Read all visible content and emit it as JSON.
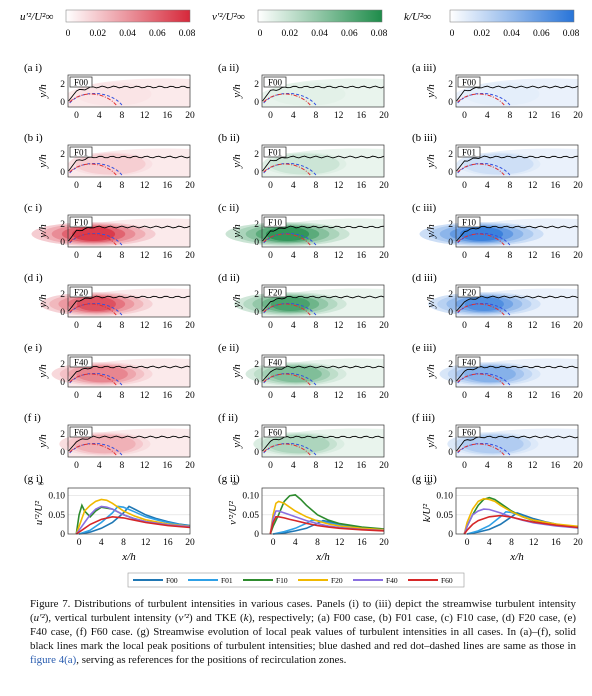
{
  "colorbars": [
    {
      "label": "u'²/U²∞",
      "ticks": [
        "0",
        "0.02",
        "0.04",
        "0.06",
        "0.08"
      ],
      "color": "#d6283a"
    },
    {
      "label": "v'²/U²∞",
      "ticks": [
        "0",
        "0.02",
        "0.04",
        "0.06",
        "0.08"
      ],
      "color": "#1e8c4a"
    },
    {
      "label": "k/U²∞",
      "ticks": [
        "0",
        "0.02",
        "0.04",
        "0.06",
        "0.08"
      ],
      "color": "#2874d8"
    }
  ],
  "rows": [
    {
      "letter": "a",
      "case": "F00",
      "intensity": 0.12,
      "peak_x": 6.5
    },
    {
      "letter": "b",
      "case": "F01",
      "intensity": 0.25,
      "peak_x": 6.0
    },
    {
      "letter": "c",
      "case": "F10",
      "intensity": 0.95,
      "peak_x": 3.0
    },
    {
      "letter": "d",
      "case": "F20",
      "intensity": 0.75,
      "peak_x": 3.5
    },
    {
      "letter": "e",
      "case": "F40",
      "intensity": 0.55,
      "peak_x": 4.5
    },
    {
      "letter": "f",
      "case": "F60",
      "intensity": 0.38,
      "peak_x": 5.0
    }
  ],
  "roman": [
    "i",
    "ii",
    "iii"
  ],
  "contour_axes": {
    "xlabel": "x/h",
    "ylabel": "y/h",
    "xticks": [
      0,
      4,
      8,
      12,
      16,
      20
    ],
    "yticks": [
      0,
      2
    ]
  },
  "line_axes": {
    "xlabel": "x/h",
    "ylabels": [
      "u'²/U²",
      "v'²/U²",
      "k/U²"
    ],
    "xticks": [
      0,
      4,
      8,
      12,
      16,
      20
    ],
    "ytick_labels": [
      "0",
      "0.05",
      "0.10"
    ],
    "exponent": "∞"
  },
  "chart_data": [
    {
      "type": "line",
      "panel": "g i",
      "xlabel": "x/h",
      "ylabel": "u'²/U²∞",
      "xlim": [
        -2,
        20
      ],
      "ylim": [
        0,
        0.12
      ],
      "series": [
        {
          "name": "F00",
          "x": [
            0,
            2,
            4,
            6,
            8,
            9,
            10,
            12,
            14,
            16,
            18,
            20
          ],
          "values": [
            0,
            0.005,
            0.015,
            0.03,
            0.055,
            0.072,
            0.065,
            0.05,
            0.04,
            0.032,
            0.026,
            0.022
          ]
        },
        {
          "name": "F01",
          "x": [
            0,
            2,
            4,
            6,
            7,
            8,
            10,
            12,
            14,
            16,
            18,
            20
          ],
          "values": [
            0,
            0.01,
            0.03,
            0.055,
            0.072,
            0.07,
            0.058,
            0.045,
            0.037,
            0.03,
            0.025,
            0.02
          ]
        },
        {
          "name": "F10",
          "x": [
            -0.5,
            0,
            0.5,
            1,
            2,
            3,
            4,
            6,
            8,
            10,
            12,
            16,
            20
          ],
          "values": [
            0,
            0.05,
            0.075,
            0.06,
            0.045,
            0.06,
            0.07,
            0.065,
            0.05,
            0.04,
            0.032,
            0.024,
            0.018
          ]
        },
        {
          "name": "F20",
          "x": [
            -0.5,
            0,
            1,
            2,
            3,
            4,
            5,
            6,
            8,
            10,
            12,
            16,
            20
          ],
          "values": [
            0,
            0.02,
            0.06,
            0.075,
            0.085,
            0.09,
            0.088,
            0.08,
            0.06,
            0.047,
            0.037,
            0.026,
            0.02
          ]
        },
        {
          "name": "F40",
          "x": [
            -0.5,
            0,
            1,
            2,
            3,
            4,
            5,
            6,
            8,
            10,
            12,
            16,
            20
          ],
          "values": [
            0,
            0.01,
            0.03,
            0.05,
            0.065,
            0.072,
            0.07,
            0.065,
            0.05,
            0.04,
            0.032,
            0.024,
            0.019
          ]
        },
        {
          "name": "F60",
          "x": [
            -0.5,
            0,
            1,
            2,
            4,
            6,
            8,
            10,
            12,
            16,
            20
          ],
          "values": [
            0,
            0.005,
            0.015,
            0.025,
            0.038,
            0.045,
            0.042,
            0.036,
            0.03,
            0.022,
            0.017
          ]
        }
      ]
    },
    {
      "type": "line",
      "panel": "g ii",
      "xlabel": "x/h",
      "ylabel": "v'²/U²∞",
      "xlim": [
        -2,
        20
      ],
      "ylim": [
        0,
        0.12
      ],
      "series": [
        {
          "name": "F00",
          "x": [
            0,
            2,
            4,
            6,
            8,
            9,
            10,
            12,
            14,
            16,
            18,
            20
          ],
          "values": [
            0,
            0.003,
            0.008,
            0.015,
            0.028,
            0.035,
            0.032,
            0.025,
            0.02,
            0.016,
            0.013,
            0.011
          ]
        },
        {
          "name": "F01",
          "x": [
            0,
            2,
            4,
            6,
            7,
            8,
            10,
            12,
            14,
            16,
            18,
            20
          ],
          "values": [
            0,
            0.006,
            0.015,
            0.028,
            0.036,
            0.035,
            0.029,
            0.023,
            0.019,
            0.015,
            0.013,
            0.01
          ]
        },
        {
          "name": "F10",
          "x": [
            -0.5,
            0,
            1,
            2,
            3,
            4,
            5,
            6,
            8,
            10,
            12,
            16,
            20
          ],
          "values": [
            0,
            0.02,
            0.05,
            0.085,
            0.1,
            0.102,
            0.09,
            0.075,
            0.05,
            0.036,
            0.027,
            0.018,
            0.013
          ]
        },
        {
          "name": "F20",
          "x": [
            -0.5,
            0,
            0.5,
            1,
            2,
            3,
            4,
            6,
            8,
            10,
            12,
            16,
            20
          ],
          "values": [
            0,
            0.05,
            0.08,
            0.085,
            0.08,
            0.07,
            0.06,
            0.045,
            0.034,
            0.026,
            0.021,
            0.015,
            0.011
          ]
        },
        {
          "name": "F40",
          "x": [
            -0.5,
            0,
            0.5,
            1,
            2,
            3,
            4,
            6,
            8,
            10,
            12,
            16,
            20
          ],
          "values": [
            0,
            0.04,
            0.06,
            0.06,
            0.055,
            0.05,
            0.045,
            0.035,
            0.027,
            0.021,
            0.017,
            0.012,
            0.009
          ]
        },
        {
          "name": "F60",
          "x": [
            -0.5,
            0,
            0.5,
            1,
            2,
            3,
            4,
            6,
            8,
            10,
            12,
            16,
            20
          ],
          "values": [
            0,
            0.03,
            0.045,
            0.045,
            0.042,
            0.038,
            0.035,
            0.028,
            0.022,
            0.018,
            0.015,
            0.011,
            0.008
          ]
        }
      ]
    },
    {
      "type": "line",
      "panel": "g iii",
      "xlabel": "x/h",
      "ylabel": "k/U²∞",
      "xlim": [
        -2,
        20
      ],
      "ylim": [
        0,
        0.12
      ],
      "series": [
        {
          "name": "F00",
          "x": [
            0,
            2,
            4,
            6,
            8,
            9,
            10,
            12,
            14,
            16,
            18,
            20
          ],
          "values": [
            0,
            0.005,
            0.012,
            0.025,
            0.045,
            0.055,
            0.05,
            0.04,
            0.032,
            0.026,
            0.021,
            0.018
          ]
        },
        {
          "name": "F01",
          "x": [
            0,
            2,
            4,
            6,
            7,
            8,
            10,
            12,
            14,
            16,
            18,
            20
          ],
          "values": [
            0,
            0.008,
            0.022,
            0.045,
            0.058,
            0.056,
            0.046,
            0.036,
            0.03,
            0.024,
            0.02,
            0.016
          ]
        },
        {
          "name": "F10",
          "x": [
            -0.5,
            0,
            1,
            2,
            3,
            4,
            5,
            6,
            8,
            10,
            12,
            16,
            20
          ],
          "values": [
            0,
            0.02,
            0.05,
            0.075,
            0.09,
            0.095,
            0.09,
            0.08,
            0.06,
            0.045,
            0.035,
            0.024,
            0.018
          ]
        },
        {
          "name": "F20",
          "x": [
            -0.5,
            0,
            1,
            2,
            3,
            4,
            5,
            6,
            8,
            10,
            12,
            16,
            20
          ],
          "values": [
            0,
            0.03,
            0.065,
            0.085,
            0.092,
            0.09,
            0.085,
            0.075,
            0.058,
            0.045,
            0.036,
            0.026,
            0.02
          ]
        },
        {
          "name": "F40",
          "x": [
            -0.5,
            0,
            1,
            2,
            3,
            4,
            6,
            8,
            10,
            12,
            16,
            20
          ],
          "values": [
            0,
            0.02,
            0.05,
            0.06,
            0.065,
            0.064,
            0.055,
            0.044,
            0.036,
            0.029,
            0.021,
            0.016
          ]
        },
        {
          "name": "F60",
          "x": [
            -0.5,
            0,
            1,
            2,
            4,
            6,
            8,
            10,
            12,
            16,
            20
          ],
          "values": [
            0,
            0.01,
            0.025,
            0.035,
            0.045,
            0.048,
            0.044,
            0.037,
            0.031,
            0.023,
            0.017
          ]
        }
      ]
    }
  ],
  "legend": [
    {
      "name": "F00",
      "color": "#1f77b4"
    },
    {
      "name": "F01",
      "color": "#2ea0e6"
    },
    {
      "name": "F10",
      "color": "#2e8b2e"
    },
    {
      "name": "F20",
      "color": "#f0b800"
    },
    {
      "name": "F40",
      "color": "#8a6fe0"
    },
    {
      "name": "F60",
      "color": "#d62728"
    }
  ],
  "caption": {
    "s1": "Figure 7. Distributions of turbulent intensities in various cases. Panels (i) to (iii) depict the streamwise turbulent intensity (",
    "m1": "u'²",
    "s2": "), vertical turbulent intensity (",
    "m2": "v'²",
    "s3": ") and TKE (",
    "m3": "k",
    "s4": "), respectively; (",
    "s5": "a) F00 case, (b) F01 case, (c) F10 case, (d) F20 case, (e) F40 case, (f) F60 case. (g) Streamwise evolution of local peak values of turbulent intensities in all cases. In (a)–(f), solid black lines mark the local peak positions of turbulent intensities; blue dashed and red dot–dashed lines are same as those in ",
    "link": "figure 4(a)",
    "s6": ", serving as references for the positions of recirculation zones."
  }
}
